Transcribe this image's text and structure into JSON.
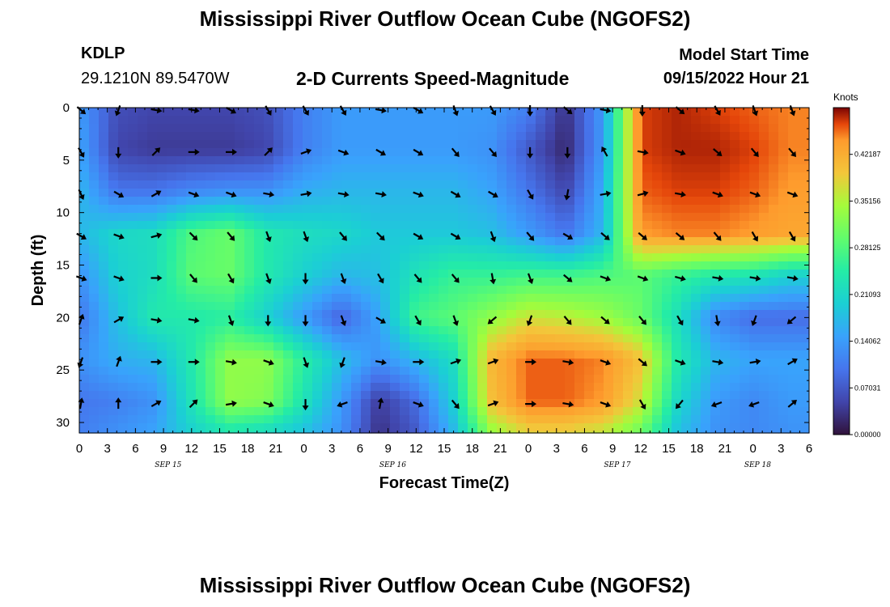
{
  "header": {
    "title": "Mississippi River Outflow Ocean Cube (NGOFS2)",
    "station_code": "KDLP",
    "station_coords": "29.1210N  89.5470W",
    "subtitle": "2-D Currents Speed-Magnitude",
    "model_start_label": "Model Start Time",
    "model_start_value": "09/15/2022 Hour 21"
  },
  "footer": {
    "title": "Mississippi River Outflow Ocean Cube (NGOFS2)"
  },
  "chart_data": {
    "type": "heatmap",
    "title": "2-D Currents Speed-Magnitude",
    "xlabel": "Forecast Time(Z)",
    "ylabel": "Depth (ft)",
    "x_range_hours": [
      0,
      78
    ],
    "ylim": [
      31,
      0
    ],
    "x_tick_labels": [
      "0",
      "3",
      "6",
      "9",
      "12",
      "15",
      "18",
      "21",
      "0",
      "3",
      "6",
      "9",
      "12",
      "15",
      "18",
      "21",
      "0",
      "3",
      "6",
      "9",
      "12",
      "15",
      "18",
      "21",
      "0",
      "3",
      "6"
    ],
    "x_tick_hours": [
      0,
      3,
      6,
      9,
      12,
      15,
      18,
      21,
      24,
      27,
      30,
      33,
      36,
      39,
      42,
      45,
      48,
      51,
      54,
      57,
      60,
      63,
      66,
      69,
      72,
      75,
      78
    ],
    "y_ticks": [
      0,
      5,
      10,
      15,
      20,
      25,
      30
    ],
    "y_tick_labels": [
      "0",
      "5",
      "10",
      "15",
      "20",
      "25",
      "30"
    ],
    "date_labels": [
      {
        "text": "SEP 15",
        "hour": 9.5
      },
      {
        "text": "SEP 16",
        "hour": 33.5
      },
      {
        "text": "SEP 17",
        "hour": 57.5
      },
      {
        "text": "SEP 18",
        "hour": 72.5
      }
    ],
    "colorbar": {
      "unit": "Knots",
      "min": 0.0,
      "max": 0.49218,
      "tick_values": [
        0.0,
        0.07031,
        0.14062,
        0.21093,
        0.28125,
        0.35156,
        0.42187
      ],
      "tick_labels": [
        "0.00000",
        "0.07031",
        "0.14062",
        "0.21093",
        "0.28125",
        "0.35156",
        "0.42187"
      ]
    },
    "speed_grid": {
      "units": "knots",
      "x_hours": [
        0,
        4,
        8,
        12,
        16,
        20,
        24,
        28,
        32,
        36,
        40,
        44,
        48,
        52,
        56,
        60,
        64,
        68,
        72,
        76
      ],
      "depths_ft": [
        0,
        4,
        8,
        12,
        16,
        20,
        24,
        28,
        31
      ],
      "values": [
        [
          0.14,
          0.06,
          0.05,
          0.05,
          0.05,
          0.06,
          0.11,
          0.14,
          0.14,
          0.14,
          0.14,
          0.14,
          0.11,
          0.03,
          0.14,
          0.47,
          0.48,
          0.47,
          0.46,
          0.45
        ],
        [
          0.15,
          0.05,
          0.04,
          0.04,
          0.04,
          0.05,
          0.11,
          0.14,
          0.14,
          0.14,
          0.14,
          0.13,
          0.07,
          0.02,
          0.14,
          0.47,
          0.48,
          0.48,
          0.47,
          0.45
        ],
        [
          0.17,
          0.1,
          0.1,
          0.12,
          0.13,
          0.13,
          0.16,
          0.17,
          0.17,
          0.17,
          0.17,
          0.15,
          0.1,
          0.05,
          0.16,
          0.46,
          0.47,
          0.47,
          0.46,
          0.44
        ],
        [
          0.17,
          0.21,
          0.22,
          0.28,
          0.3,
          0.24,
          0.22,
          0.21,
          0.19,
          0.19,
          0.19,
          0.18,
          0.14,
          0.1,
          0.17,
          0.44,
          0.45,
          0.45,
          0.44,
          0.43
        ],
        [
          0.13,
          0.2,
          0.22,
          0.29,
          0.3,
          0.24,
          0.2,
          0.17,
          0.18,
          0.23,
          0.26,
          0.26,
          0.27,
          0.27,
          0.28,
          0.29,
          0.26,
          0.24,
          0.23,
          0.2
        ],
        [
          0.1,
          0.18,
          0.24,
          0.24,
          0.25,
          0.2,
          0.14,
          0.08,
          0.15,
          0.27,
          0.29,
          0.33,
          0.37,
          0.36,
          0.34,
          0.3,
          0.22,
          0.12,
          0.09,
          0.09
        ],
        [
          0.13,
          0.16,
          0.17,
          0.24,
          0.33,
          0.33,
          0.25,
          0.18,
          0.13,
          0.17,
          0.22,
          0.41,
          0.46,
          0.46,
          0.45,
          0.4,
          0.24,
          0.17,
          0.15,
          0.15
        ],
        [
          0.1,
          0.11,
          0.13,
          0.23,
          0.33,
          0.32,
          0.23,
          0.14,
          0.04,
          0.09,
          0.2,
          0.4,
          0.46,
          0.46,
          0.44,
          0.37,
          0.21,
          0.14,
          0.12,
          0.14
        ],
        [
          0.11,
          0.13,
          0.15,
          0.2,
          0.23,
          0.21,
          0.18,
          0.13,
          0.03,
          0.07,
          0.17,
          0.33,
          0.38,
          0.38,
          0.36,
          0.3,
          0.18,
          0.13,
          0.12,
          0.13
        ]
      ]
    },
    "current_vectors": {
      "units": "direction degrees (toward, 0=up, 90=right)",
      "x_hours": [
        0,
        4,
        8,
        12,
        16,
        20,
        24,
        28,
        32,
        36,
        40,
        44,
        48,
        52,
        56,
        60,
        64,
        68,
        72,
        76
      ],
      "depths_ft": [
        0,
        4,
        8,
        12,
        16,
        20,
        24,
        28
      ],
      "directions": [
        [
          130,
          200,
          100,
          100,
          120,
          150,
          150,
          150,
          100,
          120,
          160,
          150,
          180,
          130,
          100,
          180,
          130,
          150,
          160,
          160
        ],
        [
          150,
          180,
          45,
          90,
          90,
          45,
          70,
          110,
          120,
          120,
          140,
          140,
          180,
          180,
          330,
          100,
          110,
          130,
          140,
          140
        ],
        [
          155,
          120,
          60,
          110,
          110,
          100,
          80,
          100,
          100,
          110,
          120,
          120,
          150,
          190,
          80,
          75,
          100,
          110,
          110,
          110
        ],
        [
          120,
          110,
          75,
          135,
          140,
          160,
          160,
          140,
          135,
          120,
          120,
          160,
          140,
          120,
          130,
          130,
          130,
          140,
          150,
          150
        ],
        [
          110,
          110,
          90,
          140,
          150,
          160,
          180,
          160,
          150,
          140,
          140,
          170,
          160,
          130,
          110,
          110,
          105,
          100,
          100,
          100
        ],
        [
          20,
          60,
          100,
          100,
          160,
          180,
          180,
          160,
          120,
          150,
          160,
          230,
          200,
          140,
          130,
          140,
          150,
          170,
          200,
          230
        ],
        [
          200,
          20,
          90,
          90,
          100,
          110,
          160,
          200,
          100,
          90,
          70,
          70,
          90,
          100,
          110,
          130,
          110,
          100,
          80,
          60
        ],
        [
          10,
          0,
          60,
          45,
          80,
          110,
          180,
          250,
          10,
          110,
          140,
          70,
          90,
          100,
          110,
          150,
          220,
          250,
          250,
          50
        ]
      ]
    }
  }
}
